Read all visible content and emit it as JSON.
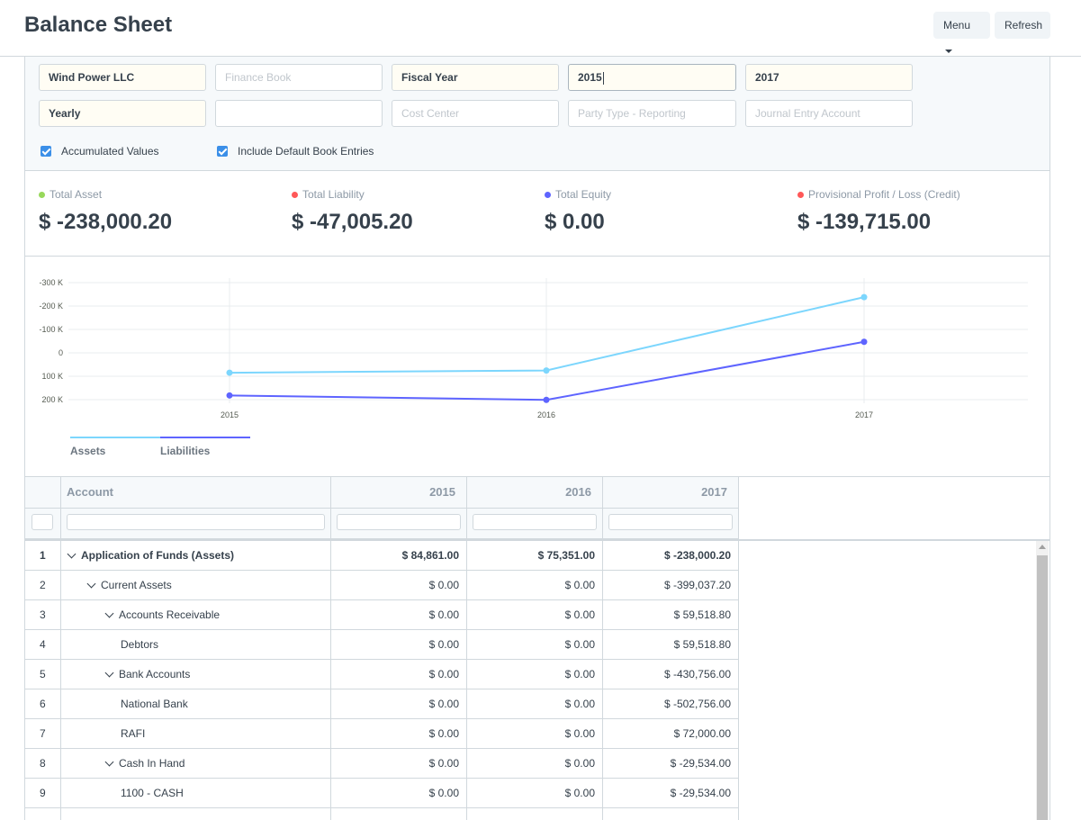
{
  "header": {
    "title": "Balance Sheet",
    "menu_label": "Menu",
    "refresh_label": "Refresh"
  },
  "filters": {
    "company": "Wind Power LLC",
    "finance_book_placeholder": "Finance Book",
    "filter_based_on": "Fiscal Year",
    "from_fiscal_year": "2015",
    "to_fiscal_year": "2017",
    "periodicity": "Yearly",
    "blank_field": "",
    "cost_center_placeholder": "Cost Center",
    "party_type_placeholder": "Party Type - Reporting",
    "journal_entry_account_placeholder": "Journal Entry Account",
    "accumulated_values_label": "Accumulated Values",
    "include_default_book_label": "Include Default Book Entries"
  },
  "summary": [
    {
      "label": "Total Asset",
      "value": "$ -238,000.20",
      "color": "#98d85b"
    },
    {
      "label": "Total Liability",
      "value": "$ -47,005.20",
      "color": "#ff5858"
    },
    {
      "label": "Total Equity",
      "value": "$ 0.00",
      "color": "#5e64ff"
    },
    {
      "label": "Provisional Profit / Loss (Credit)",
      "value": "$ -139,715.00",
      "color": "#ff5858"
    }
  ],
  "chart_data": {
    "type": "line",
    "categories": [
      "2015",
      "2016",
      "2017"
    ],
    "series": [
      {
        "name": "Assets",
        "values": [
          84861,
          75351,
          -238000.2
        ],
        "color": "#7cd6fd"
      },
      {
        "name": "Liabilities",
        "values": [
          182000,
          201000,
          -47005.2
        ],
        "color": "#5e64ff"
      }
    ],
    "y_ticks": [
      "-300 K",
      "-200 K",
      "-100 K",
      "0",
      "100 K",
      "200 K"
    ],
    "ylim": [
      -300000,
      200000
    ],
    "grid": true,
    "legend_position": "bottom-left"
  },
  "table": {
    "columns": [
      "Account",
      "2015",
      "2016",
      "2017"
    ],
    "rows": [
      {
        "idx": "1",
        "account": "Application of Funds (Assets)",
        "v2015": "$ 84,861.00",
        "v2016": "$ 75,351.00",
        "v2017": "$ -238,000.20",
        "bold": true,
        "expanded": true,
        "level": 0
      },
      {
        "idx": "2",
        "account": "Current Assets",
        "v2015": "$ 0.00",
        "v2016": "$ 0.00",
        "v2017": "$ -399,037.20",
        "bold": false,
        "expanded": true,
        "level": 1
      },
      {
        "idx": "3",
        "account": "Accounts Receivable",
        "v2015": "$ 0.00",
        "v2016": "$ 0.00",
        "v2017": "$ 59,518.80",
        "bold": false,
        "expanded": true,
        "level": 2
      },
      {
        "idx": "4",
        "account": "Debtors",
        "v2015": "$ 0.00",
        "v2016": "$ 0.00",
        "v2017": "$ 59,518.80",
        "bold": false,
        "expanded": false,
        "level": 3
      },
      {
        "idx": "5",
        "account": "Bank Accounts",
        "v2015": "$ 0.00",
        "v2016": "$ 0.00",
        "v2017": "$ -430,756.00",
        "bold": false,
        "expanded": true,
        "level": 2
      },
      {
        "idx": "6",
        "account": "National Bank",
        "v2015": "$ 0.00",
        "v2016": "$ 0.00",
        "v2017": "$ -502,756.00",
        "bold": false,
        "expanded": false,
        "level": 3
      },
      {
        "idx": "7",
        "account": "RAFI",
        "v2015": "$ 0.00",
        "v2016": "$ 0.00",
        "v2017": "$ 72,000.00",
        "bold": false,
        "expanded": false,
        "level": 3
      },
      {
        "idx": "8",
        "account": "Cash In Hand",
        "v2015": "$ 0.00",
        "v2016": "$ 0.00",
        "v2017": "$ -29,534.00",
        "bold": false,
        "expanded": true,
        "level": 2
      },
      {
        "idx": "9",
        "account": "1100 - CASH",
        "v2015": "$ 0.00",
        "v2016": "$ 0.00",
        "v2017": "$ -29,534.00",
        "bold": false,
        "expanded": false,
        "level": 3
      },
      {
        "idx": "",
        "account": "",
        "v2015": "",
        "v2016": "",
        "v2017": "",
        "bold": false,
        "expanded": false,
        "level": 3
      }
    ]
  }
}
